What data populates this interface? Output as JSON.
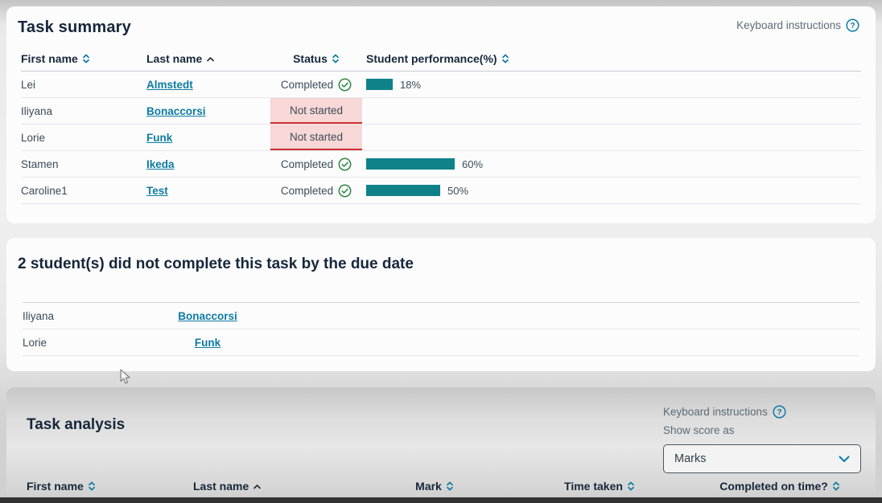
{
  "colors": {
    "accent_teal": "#0d7ba2",
    "bar_teal": "#0e8288",
    "success_green": "#2e8540",
    "not_started_bg": "#f8d7d7",
    "not_started_border": "#d22d2d"
  },
  "icons": {
    "question_glyph": "?",
    "help_icon": "question-mark-in-circle",
    "sort_icon": "up-down-chevrons",
    "sorted_asc_icon": "up-chevron",
    "completed_icon": "check-in-circle",
    "select_chevron": "chevron-down"
  },
  "task_summary": {
    "title": "Task summary",
    "keyboard_instructions_label": "Keyboard instructions",
    "columns": [
      {
        "label": "First name",
        "sort": "both"
      },
      {
        "label": "Last name",
        "sort": "asc"
      },
      {
        "label": "Status",
        "sort": "both"
      },
      {
        "label": "Student performance(%)",
        "sort": "both"
      }
    ],
    "rows": [
      {
        "first_name": "Lei",
        "last_name": "Almstedt",
        "status": "Completed",
        "performance_pct": 18,
        "performance_label": "18%"
      },
      {
        "first_name": "Iliyana",
        "last_name": "Bonaccorsi",
        "status": "Not started"
      },
      {
        "first_name": "Lorie",
        "last_name": "Funk",
        "status": "Not started"
      },
      {
        "first_name": "Stamen",
        "last_name": "Ikeda",
        "status": "Completed",
        "performance_pct": 60,
        "performance_label": "60%"
      },
      {
        "first_name": "Caroline1",
        "last_name": "Test",
        "status": "Completed",
        "performance_pct": 50,
        "performance_label": "50%"
      }
    ]
  },
  "late_section": {
    "heading": "2 student(s) did not complete this task by the due date",
    "rows": [
      {
        "first_name": "Iliyana",
        "last_name": "Bonaccorsi"
      },
      {
        "first_name": "Lorie",
        "last_name": "Funk"
      }
    ]
  },
  "task_analysis": {
    "title": "Task analysis",
    "keyboard_instructions_label": "Keyboard instructions",
    "show_score_as_label": "Show score as",
    "score_select_value": "Marks",
    "columns": [
      {
        "label": "First name",
        "sort": "both"
      },
      {
        "label": "Last name",
        "sort": "asc"
      },
      {
        "label": "Mark",
        "sort": "both"
      },
      {
        "label": "Time taken",
        "sort": "both"
      },
      {
        "label": "Completed on time?",
        "sort": "both"
      }
    ]
  }
}
